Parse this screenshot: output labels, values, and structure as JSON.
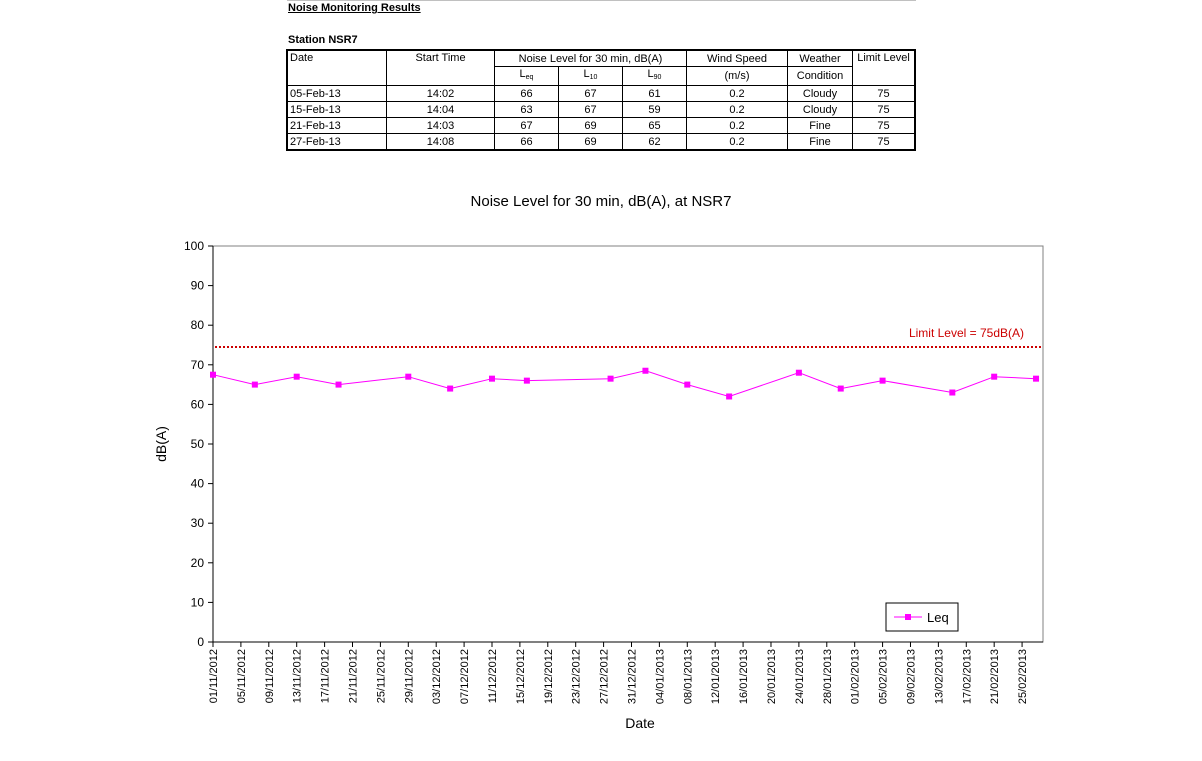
{
  "report": {
    "heading": "Noise Monitoring Results",
    "station": "Station NSR7"
  },
  "table": {
    "headers": {
      "date": "Date",
      "start_time": "Start Time",
      "noise_group": "Noise Level for 30 min, dB(A)",
      "leq_main": "L",
      "leq_sub": "eq",
      "l10_main": "L",
      "l10_sub": "10",
      "l90_main": "L",
      "l90_sub": "90",
      "wind_1": "Wind Speed",
      "wind_2": "(m/s)",
      "weather_1": "Weather",
      "weather_2": "Condition",
      "limit": "Limit Level"
    },
    "rows": [
      {
        "date": "05-Feb-13",
        "time": "14:02",
        "leq": "66",
        "l10": "67",
        "l90": "61",
        "wind": "0.2",
        "weather": "Cloudy",
        "limit": "75"
      },
      {
        "date": "15-Feb-13",
        "time": "14:04",
        "leq": "63",
        "l10": "67",
        "l90": "59",
        "wind": "0.2",
        "weather": "Cloudy",
        "limit": "75"
      },
      {
        "date": "21-Feb-13",
        "time": "14:03",
        "leq": "67",
        "l10": "69",
        "l90": "65",
        "wind": "0.2",
        "weather": "Fine",
        "limit": "75"
      },
      {
        "date": "27-Feb-13",
        "time": "14:08",
        "leq": "66",
        "l10": "69",
        "l90": "62",
        "wind": "0.2",
        "weather": "Fine",
        "limit": "75"
      }
    ]
  },
  "chart_data": {
    "type": "line",
    "title": "Noise Level for 30 min, dB(A), at NSR7",
    "xlabel": "Date",
    "ylabel": "dB(A)",
    "ylim": [
      0,
      100
    ],
    "yticks": [
      0,
      10,
      20,
      30,
      40,
      50,
      60,
      70,
      80,
      90,
      100
    ],
    "xlim": [
      "2012-11-01",
      "2013-02-28"
    ],
    "xtick_labels": [
      "01/11/2012",
      "05/11/2012",
      "09/11/2012",
      "13/11/2012",
      "17/11/2012",
      "21/11/2012",
      "25/11/2012",
      "29/11/2012",
      "03/12/2012",
      "07/12/2012",
      "11/12/2012",
      "15/12/2012",
      "19/12/2012",
      "23/12/2012",
      "27/12/2012",
      "31/12/2012",
      "04/01/2013",
      "08/01/2013",
      "12/01/2013",
      "16/01/2013",
      "20/01/2013",
      "24/01/2013",
      "28/01/2013",
      "01/02/2013",
      "05/02/2013",
      "09/02/2013",
      "13/02/2013",
      "17/02/2013",
      "21/02/2013",
      "25/02/2013"
    ],
    "legend": {
      "position": "bottom-right",
      "entries": [
        "Leq"
      ]
    },
    "grid": false,
    "series": [
      {
        "name": "Leq",
        "color": "#ff00ff",
        "marker": "square",
        "x": [
          "2012-11-01",
          "2012-11-07",
          "2012-11-13",
          "2012-11-19",
          "2012-11-29",
          "2012-12-05",
          "2012-12-11",
          "2012-12-16",
          "2012-12-28",
          "2013-01-02",
          "2013-01-08",
          "2013-01-14",
          "2013-01-24",
          "2013-01-30",
          "2013-02-05",
          "2013-02-15",
          "2013-02-21",
          "2013-02-27"
        ],
        "y": [
          67.5,
          65,
          67,
          65,
          67,
          64,
          66.5,
          66,
          66.5,
          68.5,
          65,
          62,
          68,
          64,
          66,
          63,
          67,
          66.5
        ]
      }
    ],
    "reference_line": {
      "value": 74.5,
      "label": "Limit Level = 75dB(A)",
      "color": "#cc0000",
      "style": "dotted"
    }
  }
}
